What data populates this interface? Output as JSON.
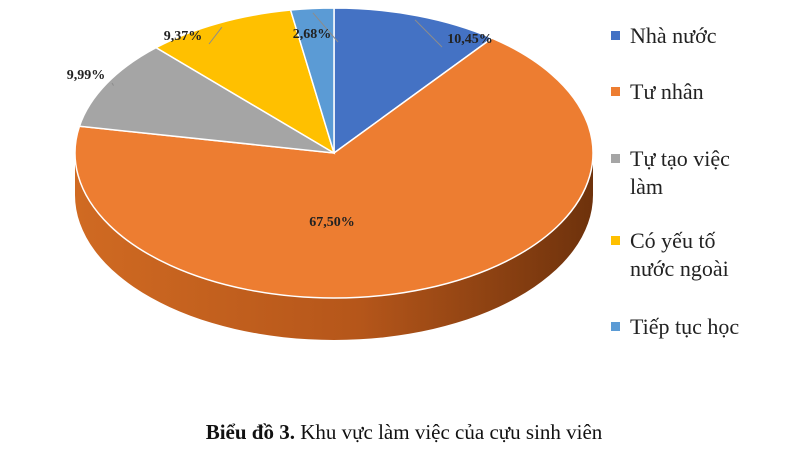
{
  "chart_data": {
    "type": "pie",
    "title": "",
    "categories": [
      "Nhà nước",
      "Tư nhân",
      "Tự tạo việc làm",
      "Có yếu tố nước ngoài",
      "Tiếp tục học"
    ],
    "values": [
      10.45,
      67.5,
      9.99,
      9.37,
      2.68
    ],
    "data_labels": [
      "10,45%",
      "67,50%",
      "9,99%",
      "9,37%",
      "2,68%"
    ],
    "colors": [
      "#4472C4",
      "#ED7D31",
      "#A5A5A5",
      "#FFC000",
      "#5B9BD5"
    ],
    "legend": {
      "position": "right",
      "entries": [
        [
          "Nhà nước"
        ],
        [
          "Tư nhân"
        ],
        [
          "Tự tạo việc",
          "làm"
        ],
        [
          "Có yếu tố",
          "nước ngoài"
        ],
        [
          "Tiếp tục học"
        ]
      ]
    },
    "style": "3d"
  },
  "caption": {
    "label": "Biểu đồ 3.",
    "text": " Khu vực làm việc của cựu sinh viên"
  }
}
